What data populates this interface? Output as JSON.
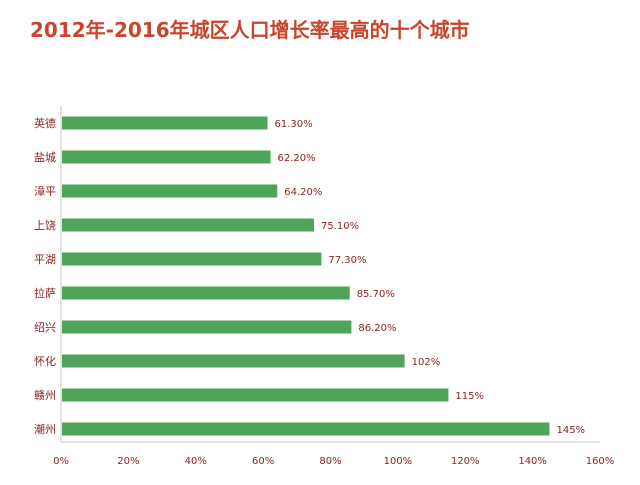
{
  "chart_data": {
    "type": "bar",
    "orientation": "horizontal",
    "title": "2012年-2016年城区人口增长率最高的十个城市",
    "categories": [
      "英德",
      "盐城",
      "漳平",
      "上饶",
      "平湖",
      "拉萨",
      "绍兴",
      "怀化",
      "赣州",
      "潮州"
    ],
    "values": [
      61.3,
      62.2,
      64.2,
      75.1,
      77.3,
      85.7,
      86.2,
      102,
      115,
      145
    ],
    "value_labels": [
      "61.30%",
      "62.20%",
      "64.20%",
      "75.10%",
      "77.30%",
      "85.70%",
      "86.20%",
      "102%",
      "115%",
      "145%"
    ],
    "xlim": [
      0,
      160
    ],
    "x_ticks": [
      "0%",
      "20%",
      "40%",
      "60%",
      "80%",
      "100%",
      "120%",
      "140%",
      "160%"
    ],
    "xlabel": "",
    "ylabel": "",
    "grid": false,
    "legend": "none",
    "bar_color": "#4ea55a",
    "title_color": "#c8442a",
    "label_color": "#8b1f1f"
  }
}
